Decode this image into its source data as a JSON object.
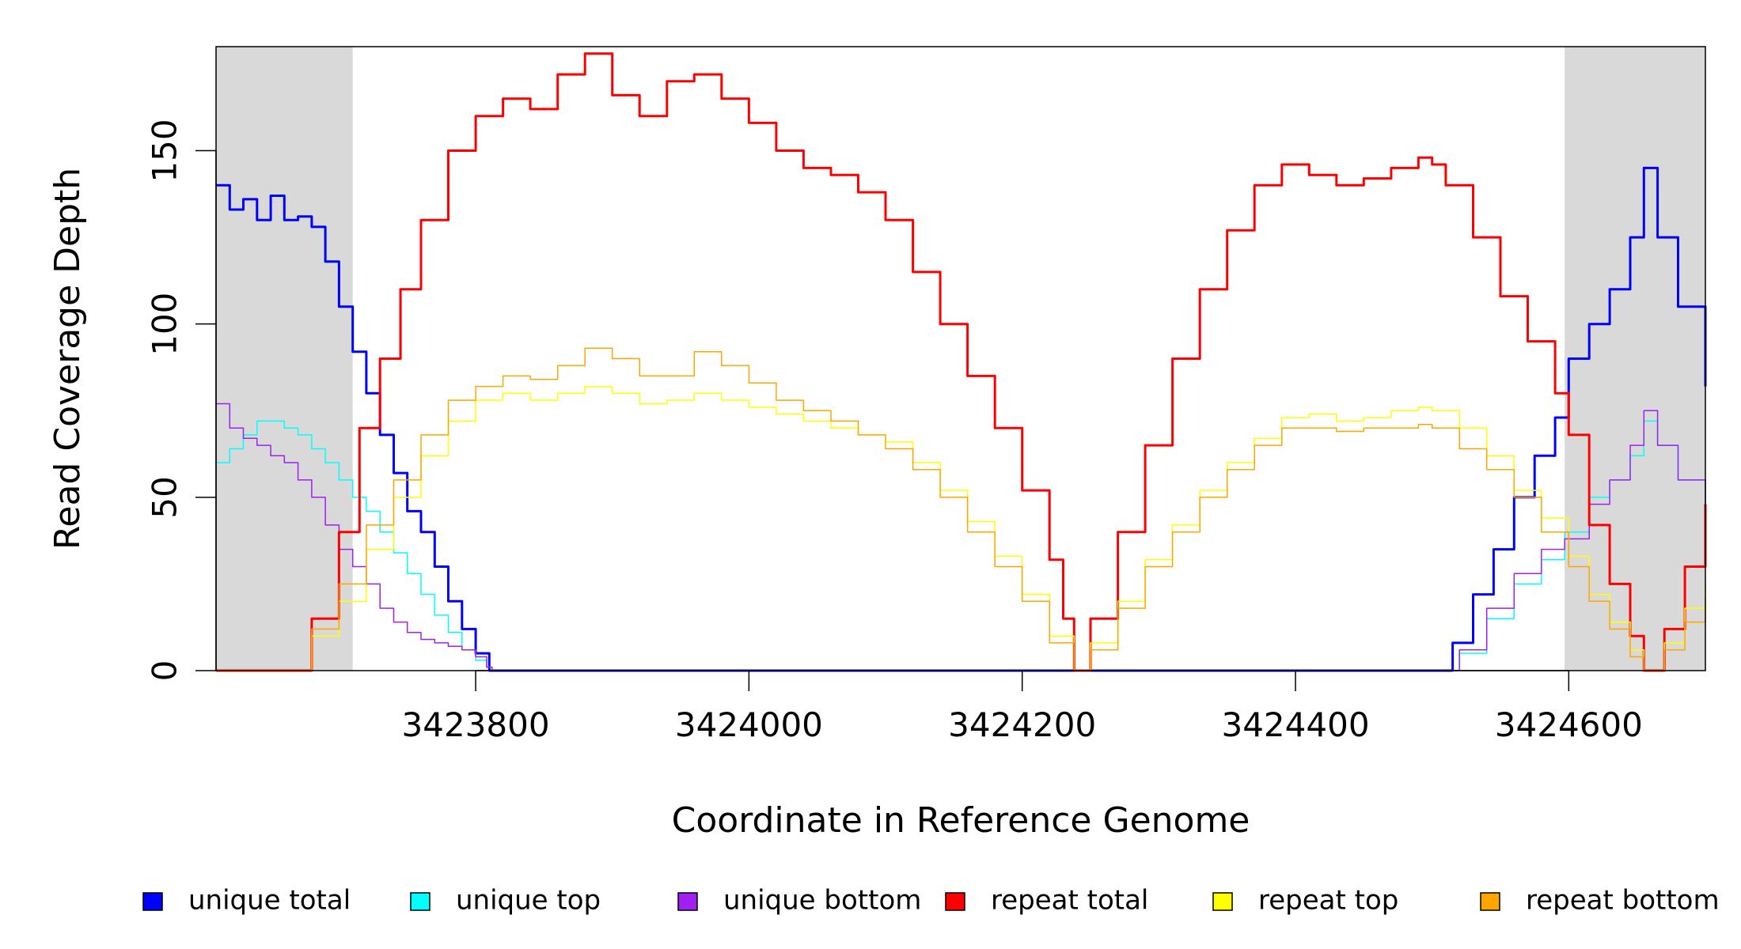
{
  "chart_data": {
    "type": "line",
    "xlabel": "Coordinate in Reference Genome",
    "ylabel": "Read Coverage Depth",
    "xlim": [
      3423610,
      3424700
    ],
    "ylim": [
      0,
      180
    ],
    "x_ticks": [
      3423800,
      3424000,
      3424200,
      3424400,
      3424600
    ],
    "x_tick_labels": [
      "3423800",
      "3424000",
      "3424200",
      "3424400",
      "3424600"
    ],
    "y_ticks": [
      0,
      50,
      100,
      150
    ],
    "y_tick_labels": [
      "0",
      "50",
      "100",
      "150"
    ],
    "shaded_regions": [
      [
        3423610,
        3423710
      ],
      [
        3424597,
        3424700
      ]
    ],
    "shaded_color": "#d9d9d9",
    "legend_position": "bottom",
    "series": [
      {
        "name": "unique total",
        "color": "#0000ff",
        "width": 3,
        "x": [
          3423610,
          3423620,
          3423630,
          3423640,
          3423650,
          3423660,
          3423670,
          3423680,
          3423690,
          3423700,
          3423710,
          3423720,
          3423730,
          3423740,
          3423750,
          3423760,
          3423770,
          3423780,
          3423790,
          3423800,
          3423810,
          3423812,
          3424508,
          3424515,
          3424530,
          3424545,
          3424560,
          3424575,
          3424590,
          3424600,
          3424615,
          3424630,
          3424645,
          3424655,
          3424665,
          3424680,
          3424700
        ],
        "y": [
          140,
          133,
          136,
          130,
          137,
          130,
          131,
          128,
          118,
          105,
          92,
          80,
          68,
          57,
          46,
          40,
          30,
          20,
          12,
          5,
          0,
          0,
          0,
          8,
          22,
          35,
          50,
          62,
          73,
          90,
          100,
          110,
          125,
          145,
          125,
          105,
          82
        ]
      },
      {
        "name": "unique top",
        "color": "#00ffff",
        "width": 1.5,
        "x": [
          3423610,
          3423620,
          3423630,
          3423640,
          3423650,
          3423660,
          3423670,
          3423680,
          3423690,
          3423700,
          3423710,
          3423720,
          3423730,
          3423740,
          3423750,
          3423760,
          3423770,
          3423780,
          3423790,
          3423800,
          3423808,
          3423812,
          3424508,
          3424520,
          3424540,
          3424560,
          3424580,
          3424597,
          3424615,
          3424630,
          3424645,
          3424655,
          3424665,
          3424680,
          3424700
        ],
        "y": [
          60,
          64,
          68,
          72,
          72,
          70,
          68,
          64,
          60,
          55,
          50,
          46,
          40,
          34,
          28,
          22,
          16,
          11,
          6,
          3,
          1,
          0,
          0,
          5,
          15,
          25,
          32,
          40,
          50,
          55,
          62,
          72,
          65,
          55,
          42
        ]
      },
      {
        "name": "unique bottom",
        "color": "#a020f0",
        "width": 1.5,
        "x": [
          3423610,
          3423620,
          3423630,
          3423640,
          3423650,
          3423660,
          3423670,
          3423680,
          3423690,
          3423700,
          3423710,
          3423720,
          3423730,
          3423740,
          3423750,
          3423760,
          3423770,
          3423780,
          3423790,
          3423800,
          3423808,
          3423812,
          3424508,
          3424520,
          3424540,
          3424560,
          3424580,
          3424597,
          3424615,
          3424630,
          3424645,
          3424655,
          3424665,
          3424680,
          3424700
        ],
        "y": [
          77,
          70,
          67,
          65,
          62,
          60,
          55,
          50,
          42,
          35,
          30,
          25,
          18,
          14,
          11,
          9,
          8,
          7,
          6,
          4,
          1,
          0,
          0,
          6,
          18,
          28,
          35,
          38,
          48,
          55,
          65,
          75,
          65,
          55,
          44
        ]
      },
      {
        "name": "repeat total",
        "color": "#ff0000",
        "width": 3,
        "x": [
          3423610,
          3423664,
          3423680,
          3423700,
          3423715,
          3423730,
          3423745,
          3423760,
          3423780,
          3423800,
          3423820,
          3423840,
          3423860,
          3423880,
          3423900,
          3423920,
          3423940,
          3423960,
          3423980,
          3424000,
          3424020,
          3424040,
          3424060,
          3424080,
          3424100,
          3424120,
          3424140,
          3424160,
          3424180,
          3424200,
          3424220,
          3424230,
          3424238,
          3424250,
          3424270,
          3424290,
          3424310,
          3424330,
          3424350,
          3424370,
          3424390,
          3424410,
          3424430,
          3424450,
          3424470,
          3424490,
          3424500,
          3424510,
          3424530,
          3424550,
          3424570,
          3424590,
          3424600,
          3424615,
          3424630,
          3424645,
          3424655,
          3424670,
          3424685,
          3424700
        ],
        "y": [
          0,
          0,
          15,
          40,
          70,
          90,
          110,
          130,
          150,
          160,
          165,
          162,
          172,
          178,
          166,
          160,
          170,
          172,
          165,
          158,
          150,
          145,
          143,
          138,
          130,
          115,
          100,
          85,
          70,
          52,
          32,
          15,
          0,
          15,
          40,
          65,
          90,
          110,
          127,
          140,
          146,
          143,
          140,
          142,
          145,
          148,
          146,
          140,
          125,
          108,
          95,
          80,
          68,
          42,
          25,
          10,
          0,
          12,
          30,
          48
        ]
      },
      {
        "name": "repeat top",
        "color": "#ffff00",
        "width": 1.5,
        "x": [
          3423610,
          3423664,
          3423680,
          3423700,
          3423720,
          3423740,
          3423760,
          3423780,
          3423800,
          3423820,
          3423840,
          3423860,
          3423880,
          3423900,
          3423920,
          3423940,
          3423960,
          3423980,
          3424000,
          3424020,
          3424040,
          3424060,
          3424080,
          3424100,
          3424120,
          3424140,
          3424160,
          3424180,
          3424200,
          3424220,
          3424238,
          3424250,
          3424270,
          3424290,
          3424310,
          3424330,
          3424350,
          3424370,
          3424390,
          3424410,
          3424430,
          3424450,
          3424470,
          3424490,
          3424500,
          3424520,
          3424540,
          3424560,
          3424580,
          3424600,
          3424615,
          3424630,
          3424645,
          3424655,
          3424670,
          3424685,
          3424700
        ],
        "y": [
          0,
          0,
          10,
          20,
          35,
          50,
          62,
          72,
          78,
          80,
          78,
          80,
          82,
          80,
          77,
          78,
          80,
          78,
          76,
          74,
          72,
          70,
          68,
          66,
          60,
          52,
          43,
          33,
          22,
          10,
          0,
          8,
          20,
          32,
          42,
          52,
          60,
          67,
          73,
          74,
          72,
          73,
          75,
          76,
          75,
          70,
          62,
          52,
          44,
          33,
          22,
          14,
          6,
          0,
          8,
          18,
          26
        ]
      },
      {
        "name": "repeat bottom",
        "color": "#ffa500",
        "width": 1.5,
        "x": [
          3423610,
          3423664,
          3423680,
          3423700,
          3423720,
          3423740,
          3423760,
          3423780,
          3423800,
          3423820,
          3423840,
          3423860,
          3423880,
          3423900,
          3423920,
          3423940,
          3423960,
          3423980,
          3424000,
          3424020,
          3424040,
          3424060,
          3424080,
          3424100,
          3424120,
          3424140,
          3424160,
          3424180,
          3424200,
          3424220,
          3424238,
          3424250,
          3424270,
          3424290,
          3424310,
          3424330,
          3424350,
          3424370,
          3424390,
          3424410,
          3424430,
          3424450,
          3424470,
          3424490,
          3424500,
          3424520,
          3424540,
          3424560,
          3424580,
          3424600,
          3424615,
          3424630,
          3424645,
          3424655,
          3424670,
          3424685,
          3424700
        ],
        "y": [
          0,
          0,
          12,
          25,
          42,
          55,
          68,
          78,
          82,
          85,
          84,
          88,
          93,
          90,
          85,
          85,
          92,
          88,
          83,
          78,
          75,
          72,
          68,
          64,
          58,
          50,
          40,
          30,
          20,
          8,
          0,
          6,
          18,
          30,
          40,
          50,
          58,
          65,
          70,
          70,
          69,
          70,
          70,
          71,
          70,
          64,
          58,
          50,
          40,
          30,
          20,
          12,
          4,
          0,
          6,
          14,
          21
        ]
      }
    ]
  }
}
